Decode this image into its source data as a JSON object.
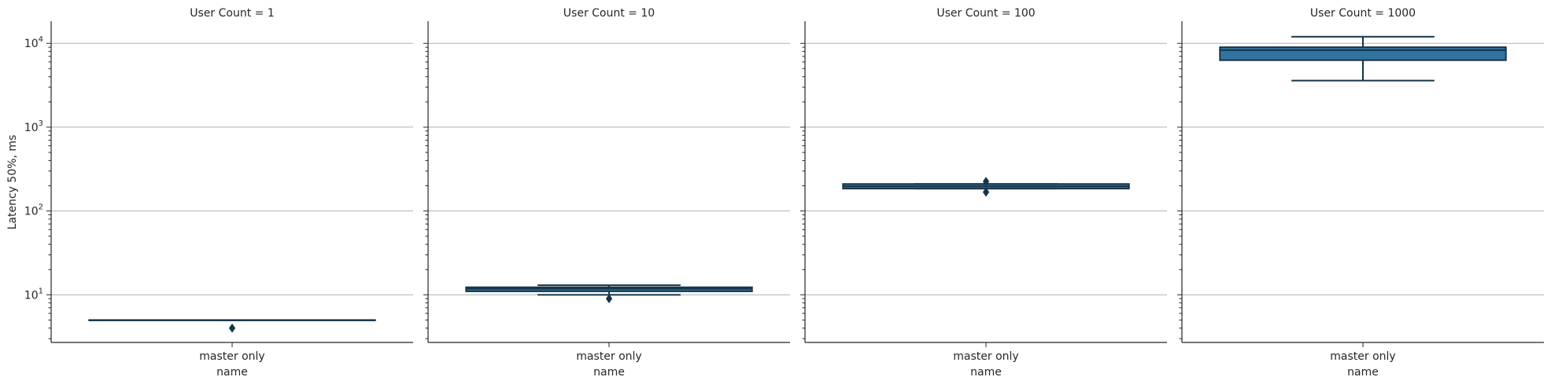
{
  "chart_data": {
    "type": "box",
    "scale": "log",
    "ylabel": "Latency 50%, ms",
    "xlabel": "name",
    "ylim": [
      2.7,
      18000
    ],
    "grid": "horizontal-major",
    "y_ticks": [
      {
        "value": 10,
        "base": "10",
        "exp": "1"
      },
      {
        "value": 100,
        "base": "10",
        "exp": "2"
      },
      {
        "value": 1000,
        "base": "10",
        "exp": "3"
      },
      {
        "value": 10000,
        "base": "10",
        "exp": "4"
      }
    ],
    "box_color": "#3274a1",
    "panels": [
      {
        "title": "User Count = 1",
        "category": "master only",
        "box": {
          "q1": 5,
          "median": 5,
          "q3": 5,
          "whisker_low": 5,
          "whisker_high": 5
        },
        "outliers": [
          4
        ]
      },
      {
        "title": "User Count = 10",
        "category": "master only",
        "box": {
          "q1": 11,
          "median": 11.8,
          "q3": 12.3,
          "whisker_low": 10,
          "whisker_high": 13
        },
        "outliers": [
          9
        ]
      },
      {
        "title": "User Count = 100",
        "category": "master only",
        "box": {
          "q1": 185,
          "median": 197,
          "q3": 210,
          "whisker_low": 185,
          "whisker_high": 210
        },
        "outliers": [
          225,
          168
        ]
      },
      {
        "title": "User Count = 1000",
        "category": "master only",
        "box": {
          "q1": 6300,
          "median": 8300,
          "q3": 9000,
          "whisker_low": 3600,
          "whisker_high": 12000
        },
        "outliers": []
      }
    ]
  }
}
